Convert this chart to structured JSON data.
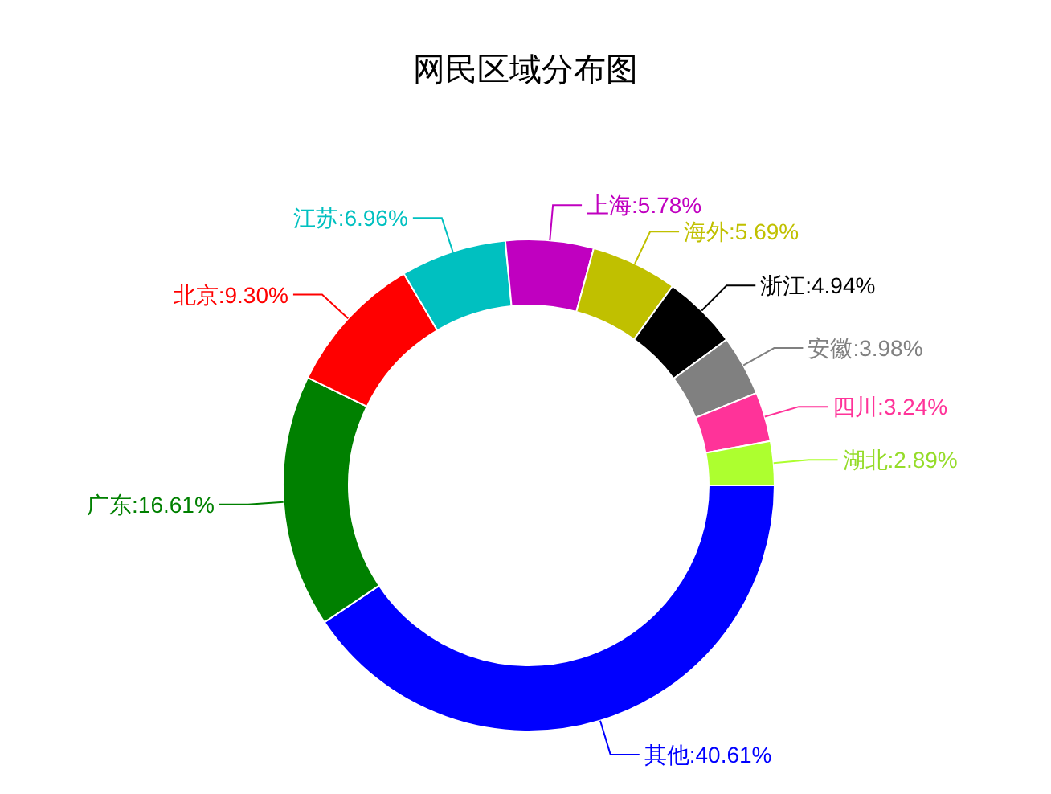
{
  "chart_data": {
    "type": "donut",
    "title": "网民区域分布图",
    "categories": [
      "其他",
      "广东",
      "北京",
      "江苏",
      "上海",
      "海外",
      "浙江",
      "安徽",
      "四川",
      "湖北"
    ],
    "values": [
      40.61,
      16.61,
      9.3,
      6.96,
      5.78,
      5.69,
      4.94,
      3.98,
      3.24,
      2.89
    ],
    "value_labels": [
      "40.61%",
      "16.61%",
      "9.30%",
      "6.96%",
      "5.78%",
      "5.69%",
      "4.94%",
      "3.98%",
      "3.24%",
      "2.89%"
    ],
    "colors": [
      "#0000ff",
      "#008000",
      "#ff0000",
      "#00c0c0",
      "#c000c0",
      "#c0c000",
      "#000000",
      "#808080",
      "#ff3399",
      "#adff2f"
    ],
    "legend": false
  }
}
